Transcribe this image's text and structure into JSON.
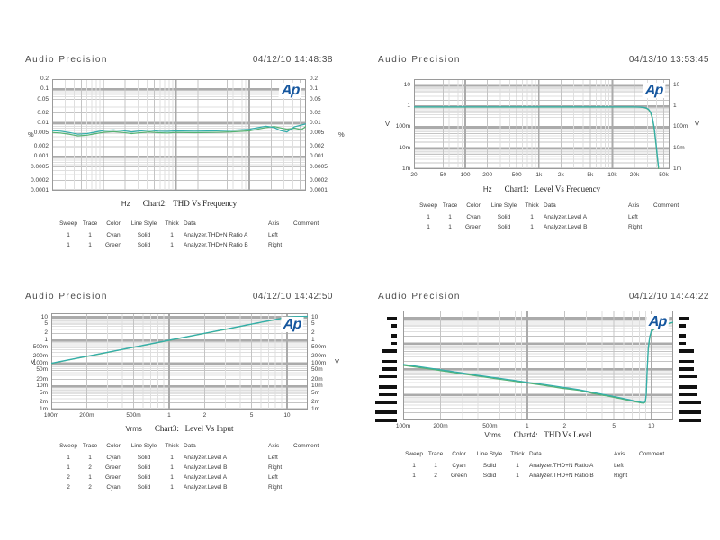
{
  "logo_text": "Ap",
  "colors": {
    "cyan": "#33AEAC",
    "green": "#55B273",
    "logo_blue": "#15569E",
    "grid_major": "#ABABAB",
    "grid_mid": "#C4C4C4",
    "grid_minor": "#DFDFDF",
    "plot_border": "#9A9A9A",
    "text": "#3C3C3C"
  },
  "legend_headers": [
    "Sweep",
    "Trace",
    "Color",
    "Line Style",
    "Thick",
    "Data",
    "Axis",
    "Comment"
  ],
  "charts": [
    {
      "name": "thd-vs-frequency",
      "header": "Audio Precision",
      "datetime": "04/12/10 14:48:38",
      "caption": {
        "unit": "Hz",
        "title": "Chart2:   THD Vs Frequency"
      },
      "y_axis": {
        "style": "text",
        "unit_left": "%",
        "unit_right": "%",
        "ticks": [
          {
            "label": "0.2",
            "v": 0.2
          },
          {
            "label": "0.1",
            "v": 0.1
          },
          {
            "label": "0.05",
            "v": 0.05
          },
          {
            "label": "0.02",
            "v": 0.02
          },
          {
            "label": "0.01",
            "v": 0.01
          },
          {
            "label": "0.005",
            "v": 0.005
          },
          {
            "label": "0.002",
            "v": 0.002
          },
          {
            "label": "0.001",
            "v": 0.001
          },
          {
            "label": "0.0005",
            "v": 0.0005
          },
          {
            "label": "0.0002",
            "v": 0.0002
          },
          {
            "label": "0.0001",
            "v": 0.0001
          }
        ]
      },
      "x_axis": {
        "ticks": []
      },
      "legend_rows": [
        [
          "1",
          "1",
          "Cyan",
          "Solid",
          "1",
          "Analyzer.THD+N Ratio A",
          "Left",
          ""
        ],
        [
          "1",
          "1",
          "Green",
          "Solid",
          "1",
          "Analyzer.THD+N Ratio B",
          "Right",
          ""
        ]
      ],
      "chart_data": {
        "type": "line",
        "title": "Chart2: THD Vs Frequency",
        "xlabel": "Hz",
        "ylabel": "%",
        "x_scale": "log",
        "y_scale": "log",
        "x_range": [
          20,
          60000
        ],
        "y_range": [
          0.0001,
          0.2
        ],
        "series": [
          {
            "name": "Analyzer.THD+N Ratio A",
            "color": "cyan",
            "x": [
              20,
              26,
              34,
              45,
              60,
              80,
              105,
              140,
              185,
              245,
              325,
              430,
              570,
              760,
              1000,
              1800,
              3200,
              5600,
              10000,
              13000,
              17000,
              22000,
              27000,
              33000,
              42000,
              52000,
              60000
            ],
            "y": [
              0.006,
              0.0058,
              0.0053,
              0.0047,
              0.0049,
              0.0055,
              0.0061,
              0.0063,
              0.006,
              0.0055,
              0.0059,
              0.0062,
              0.0058,
              0.0057,
              0.0059,
              0.0058,
              0.0059,
              0.0061,
              0.0066,
              0.0073,
              0.0081,
              0.0074,
              0.006,
              0.0055,
              0.0078,
              0.0088,
              0.0095
            ]
          },
          {
            "name": "Analyzer.THD+N Ratio B",
            "color": "green",
            "x": [
              20,
              26,
              34,
              45,
              60,
              80,
              105,
              140,
              185,
              245,
              325,
              430,
              570,
              760,
              1000,
              1800,
              3200,
              5600,
              10000,
              13000,
              17000,
              22000,
              27000,
              33000,
              42000,
              52000,
              60000
            ],
            "y": [
              0.0053,
              0.0051,
              0.0047,
              0.0042,
              0.0044,
              0.0049,
              0.0054,
              0.0056,
              0.0053,
              0.0049,
              0.0052,
              0.0055,
              0.0052,
              0.0051,
              0.0053,
              0.0052,
              0.0053,
              0.0055,
              0.0059,
              0.0066,
              0.0074,
              0.0079,
              0.0072,
              0.0066,
              0.0071,
              0.0064,
              0.008
            ]
          }
        ]
      }
    },
    {
      "name": "level-vs-frequency",
      "header": "Audio Precision",
      "datetime": "04/13/10 13:53:45",
      "caption": {
        "unit": "Hz",
        "title": "Chart1:   Level Vs Frequency"
      },
      "y_axis": {
        "style": "text",
        "unit_left": "V",
        "unit_right": "V",
        "ticks": [
          {
            "label": "10",
            "v": 10
          },
          {
            "label": "1",
            "v": 1
          },
          {
            "label": "100m",
            "v": 0.1
          },
          {
            "label": "10m",
            "v": 0.01
          },
          {
            "label": "1m",
            "v": 0.001
          }
        ]
      },
      "x_axis": {
        "ticks": [
          {
            "label": "20",
            "v": 20
          },
          {
            "label": "50",
            "v": 50
          },
          {
            "label": "100",
            "v": 100
          },
          {
            "label": "200",
            "v": 200
          },
          {
            "label": "500",
            "v": 500
          },
          {
            "label": "1k",
            "v": 1000
          },
          {
            "label": "2k",
            "v": 2000
          },
          {
            "label": "5k",
            "v": 5000
          },
          {
            "label": "10k",
            "v": 10000
          },
          {
            "label": "20k",
            "v": 20000
          },
          {
            "label": "50k",
            "v": 50000
          }
        ]
      },
      "legend_rows": [
        [
          "1",
          "1",
          "Cyan",
          "Solid",
          "1",
          "Analyzer.Level A",
          "Left",
          ""
        ],
        [
          "1",
          "1",
          "Green",
          "Solid",
          "1",
          "Analyzer.Level B",
          "Right",
          ""
        ]
      ],
      "chart_data": {
        "type": "line",
        "title": "Chart1: Level Vs Frequency",
        "xlabel": "Hz",
        "ylabel": "V",
        "x_scale": "log",
        "y_scale": "log",
        "x_range": [
          20,
          60000
        ],
        "y_range": [
          0.001,
          20
        ],
        "series": [
          {
            "name": "Analyzer.Level A",
            "color": "cyan",
            "x": [
              20,
              50,
              100,
              300,
              1000,
              3000,
              8000,
              15000,
              20000,
              24000,
              27000,
              29000,
              31000,
              33000,
              35000,
              37000,
              39000,
              41000,
              42500
            ],
            "y": [
              0.95,
              0.95,
              0.95,
              0.95,
              0.95,
              0.95,
              0.95,
              0.95,
              0.95,
              0.93,
              0.89,
              0.84,
              0.74,
              0.55,
              0.3,
              0.1,
              0.022,
              0.004,
              0.0012
            ]
          },
          {
            "name": "Analyzer.Level B",
            "color": "green",
            "x": [
              20,
              50,
              100,
              300,
              1000,
              3000,
              8000,
              15000,
              20000,
              24000,
              27000,
              29000,
              31000,
              33000,
              35000,
              37000,
              39000,
              41000,
              42500
            ],
            "y": [
              0.93,
              0.93,
              0.93,
              0.93,
              0.93,
              0.93,
              0.93,
              0.93,
              0.93,
              0.91,
              0.87,
              0.81,
              0.7,
              0.5,
              0.26,
              0.08,
              0.017,
              0.003,
              0.001
            ]
          }
        ]
      }
    },
    {
      "name": "level-vs-input",
      "header": "Audio Precision",
      "datetime": "04/12/10 14:42:50",
      "caption": {
        "unit": "Vrms",
        "title": "Chart3:   Level Vs Input"
      },
      "y_axis": {
        "style": "text",
        "unit_left": "V",
        "unit_right": "V",
        "ticks": [
          {
            "label": "10",
            "v": 10
          },
          {
            "label": "5",
            "v": 5
          },
          {
            "label": "2",
            "v": 2
          },
          {
            "label": "1",
            "v": 1
          },
          {
            "label": "500m",
            "v": 0.5
          },
          {
            "label": "200m",
            "v": 0.2
          },
          {
            "label": "100m",
            "v": 0.1
          },
          {
            "label": "50m",
            "v": 0.05
          },
          {
            "label": "20m",
            "v": 0.02
          },
          {
            "label": "10m",
            "v": 0.01
          },
          {
            "label": "5m",
            "v": 0.005
          },
          {
            "label": "2m",
            "v": 0.002
          },
          {
            "label": "1m",
            "v": 0.001
          }
        ]
      },
      "x_axis": {
        "ticks": [
          {
            "label": "100m",
            "v": 0.1
          },
          {
            "label": "200m",
            "v": 0.2
          },
          {
            "label": "500m",
            "v": 0.5
          },
          {
            "label": "1",
            "v": 1
          },
          {
            "label": "2",
            "v": 2
          },
          {
            "label": "5",
            "v": 5
          },
          {
            "label": "10",
            "v": 10
          }
        ]
      },
      "legend_rows": [
        [
          "1",
          "1",
          "Cyan",
          "Solid",
          "1",
          "Analyzer.Level A",
          "Left",
          ""
        ],
        [
          "1",
          "2",
          "Green",
          "Solid",
          "1",
          "Analyzer.Level B",
          "Right",
          ""
        ],
        [
          "2",
          "1",
          "Green",
          "Solid",
          "1",
          "Analyzer.Level A",
          "Left",
          ""
        ],
        [
          "2",
          "2",
          "Cyan",
          "Solid",
          "1",
          "Analyzer.Level B",
          "Right",
          ""
        ]
      ],
      "chart_data": {
        "type": "line",
        "title": "Chart3: Level Vs Input",
        "xlabel": "Vrms",
        "ylabel": "V",
        "x_scale": "log",
        "y_scale": "log",
        "x_range": [
          0.1,
          15
        ],
        "y_range": [
          0.001,
          15
        ],
        "series": [
          {
            "name": "Analyzer.Level A",
            "color": "cyan",
            "x": [
              0.1,
              0.15,
              0.25,
              0.4,
              0.7,
              1.2,
              2,
              3.5,
              6,
              8,
              9.5,
              10.5,
              12,
              15
            ],
            "y": [
              0.102,
              0.153,
              0.255,
              0.41,
              0.71,
              1.22,
              2.04,
              3.55,
              6.1,
              8.1,
              9.6,
              10.4,
              10.8,
              11.0
            ]
          },
          {
            "name": "Analyzer.Level B",
            "color": "green",
            "x": [
              0.1,
              0.15,
              0.25,
              0.4,
              0.7,
              1.2,
              2,
              3.5,
              6,
              8,
              9.5,
              10.5,
              12,
              15
            ],
            "y": [
              0.1,
              0.15,
              0.25,
              0.4,
              0.7,
              1.2,
              2.0,
              3.48,
              6.0,
              7.95,
              9.45,
              10.25,
              10.65,
              10.85
            ]
          }
        ]
      }
    },
    {
      "name": "thd-vs-level",
      "header": "Audio Precision",
      "datetime": "04/12/10 14:44:22",
      "caption": {
        "unit": "Vrms",
        "title": "Chart4:   THD Vs Level"
      },
      "y_axis": {
        "style": "bars",
        "ticks": [
          {
            "len": 2,
            "v": 10
          },
          {
            "len": 1,
            "v": 5
          },
          {
            "len": 1,
            "v": 2
          },
          {
            "len": 1,
            "v": 1
          },
          {
            "len": 3,
            "v": 0.5
          },
          {
            "len": 3,
            "v": 0.2
          },
          {
            "len": 3,
            "v": 0.1
          },
          {
            "len": 4,
            "v": 0.05
          },
          {
            "len": 4,
            "v": 0.02
          },
          {
            "len": 4,
            "v": 0.01
          },
          {
            "len": 5,
            "v": 0.005
          },
          {
            "len": 5,
            "v": 0.002
          },
          {
            "len": 5,
            "v": 0.001
          }
        ]
      },
      "x_axis": {
        "ticks": [
          {
            "label": "100m",
            "v": 0.1
          },
          {
            "label": "200m",
            "v": 0.2
          },
          {
            "label": "500m",
            "v": 0.5
          },
          {
            "label": "1",
            "v": 1
          },
          {
            "label": "2",
            "v": 2
          },
          {
            "label": "5",
            "v": 5
          },
          {
            "label": "10",
            "v": 10
          }
        ]
      },
      "legend_rows": [
        [
          "1",
          "1",
          "Cyan",
          "Solid",
          "1",
          "Analyzer.THD+N Ratio A",
          "Left",
          ""
        ],
        [
          "1",
          "2",
          "Green",
          "Solid",
          "1",
          "Analyzer.THD+N Ratio B",
          "Right",
          ""
        ]
      ],
      "chart_data": {
        "type": "line",
        "title": "Chart4: THD Vs Level",
        "xlabel": "Vrms",
        "ylabel": "",
        "x_scale": "log",
        "y_scale": "log",
        "x_range": [
          0.1,
          15
        ],
        "y_range": [
          0.001,
          20
        ],
        "series": [
          {
            "name": "Analyzer.THD+N Ratio A",
            "color": "cyan",
            "x": [
              0.1,
              0.13,
              0.17,
              0.22,
              0.3,
              0.4,
              0.55,
              0.75,
              1,
              1.4,
              1.9,
              2.6,
              3.5,
              4.7,
              6,
              7,
              7.8,
              8.3,
              8.7,
              8.95,
              9.1,
              9.25,
              9.45,
              9.7,
              10,
              11,
              12.5,
              14,
              15
            ],
            "y": [
              0.155,
              0.13,
              0.108,
              0.09,
              0.072,
              0.058,
              0.047,
              0.038,
              0.031,
              0.025,
              0.02,
              0.016,
              0.012,
              0.0092,
              0.0072,
              0.0061,
              0.0054,
              0.0051,
              0.005,
              0.0055,
              0.012,
              0.1,
              0.7,
              1.9,
              3.2,
              4.6,
              5.6,
              6.4,
              7.0
            ]
          },
          {
            "name": "Analyzer.THD+N Ratio B",
            "color": "green",
            "x": [
              0.1,
              0.13,
              0.17,
              0.22,
              0.3,
              0.4,
              0.55,
              0.75,
              1,
              1.4,
              1.9,
              2.6,
              3.5,
              4.7,
              6,
              7,
              7.8,
              8.3,
              8.7,
              8.95,
              9.1,
              9.25,
              9.45,
              9.7,
              10,
              11,
              12.5,
              14,
              15
            ],
            "y": [
              0.143,
              0.12,
              0.1,
              0.083,
              0.066,
              0.054,
              0.043,
              0.035,
              0.029,
              0.023,
              0.018,
              0.015,
              0.011,
              0.0085,
              0.0067,
              0.0057,
              0.0051,
              0.0048,
              0.0047,
              0.0052,
              0.01,
              0.085,
              0.6,
              1.7,
              3.0,
              4.4,
              5.4,
              6.2,
              6.8
            ]
          }
        ]
      }
    }
  ]
}
